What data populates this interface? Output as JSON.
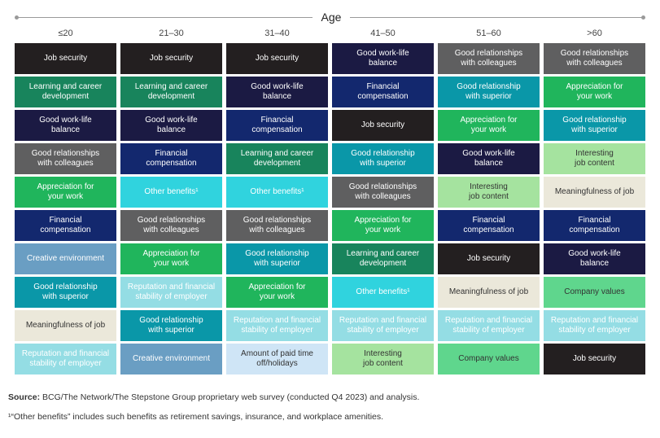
{
  "colors": {
    "Job security": {
      "bg": "#231f20",
      "fg": "#ffffff"
    },
    "Good work-life balance": {
      "bg": "#1b1a43",
      "fg": "#ffffff"
    },
    "Learning and career development": {
      "bg": "#18845c",
      "fg": "#ffffff"
    },
    "Good relationships with colleagues": {
      "bg": "#5f5f60",
      "fg": "#ffffff"
    },
    "Appreciation for your work": {
      "bg": "#20b55c",
      "fg": "#ffffff"
    },
    "Financial compensation": {
      "bg": "#13286e",
      "fg": "#ffffff"
    },
    "Creative environment": {
      "bg": "#6a9ec3",
      "fg": "#ffffff"
    },
    "Good relationship with superior": {
      "bg": "#0a97a8",
      "fg": "#ffffff"
    },
    "Meaningfulness of job": {
      "bg": "#ebe8da",
      "fg": "#333333"
    },
    "Reputation and financial stability of employer": {
      "bg": "#94dde4",
      "fg": "#ffffff"
    },
    "Other benefits": {
      "bg": "#30d3de",
      "fg": "#ffffff"
    },
    "Amount of paid time off/holidays": {
      "bg": "#cfe5f6",
      "fg": "#333333"
    },
    "Interesting job content": {
      "bg": "#a5e39f",
      "fg": "#333333"
    },
    "Company values": {
      "bg": "#5fd68d",
      "fg": "#333333"
    }
  },
  "chart_data": {
    "type": "table",
    "title": "Age",
    "columns": [
      "≤20",
      "21–30",
      "31–40",
      "41–50",
      "51–60",
      ">60"
    ],
    "rows": [
      [
        {
          "key": "Job security",
          "label": "Job security"
        },
        {
          "key": "Learning and career development",
          "label": "Learning and career\ndevelopment"
        },
        {
          "key": "Good work-life balance",
          "label": "Good work-life\nbalance"
        },
        {
          "key": "Good relationships with colleagues",
          "label": "Good relationships\nwith colleagues"
        },
        {
          "key": "Appreciation for your work",
          "label": "Appreciation for\nyour work"
        },
        {
          "key": "Financial compensation",
          "label": "Financial\ncompensation"
        },
        {
          "key": "Creative environment",
          "label": "Creative environment"
        },
        {
          "key": "Good relationship with superior",
          "label": "Good relationship\nwith superior"
        },
        {
          "key": "Meaningfulness of job",
          "label": "Meaningfulness of job"
        },
        {
          "key": "Reputation and financial stability of employer",
          "label": "Reputation and financial\nstability of employer"
        }
      ],
      [
        {
          "key": "Job security",
          "label": "Job security"
        },
        {
          "key": "Learning and career development",
          "label": "Learning and career\ndevelopment"
        },
        {
          "key": "Good work-life balance",
          "label": "Good work-life\nbalance"
        },
        {
          "key": "Financial compensation",
          "label": "Financial\ncompensation"
        },
        {
          "key": "Other benefits",
          "label": "Other benefits¹"
        },
        {
          "key": "Good relationships with colleagues",
          "label": "Good relationships\nwith colleagues"
        },
        {
          "key": "Appreciation for your work",
          "label": "Appreciation for\nyour work"
        },
        {
          "key": "Reputation and financial stability of employer",
          "label": "Reputation and financial\nstability of employer"
        },
        {
          "key": "Good relationship with superior",
          "label": "Good relationship\nwith superior"
        },
        {
          "key": "Creative environment",
          "label": "Creative environment"
        }
      ],
      [
        {
          "key": "Job security",
          "label": "Job security"
        },
        {
          "key": "Good work-life balance",
          "label": "Good work-life\nbalance"
        },
        {
          "key": "Financial compensation",
          "label": "Financial\ncompensation"
        },
        {
          "key": "Learning and career development",
          "label": "Learning and career\ndevelopment"
        },
        {
          "key": "Other benefits",
          "label": "Other benefits¹"
        },
        {
          "key": "Good relationships with colleagues",
          "label": "Good relationships\nwith colleagues"
        },
        {
          "key": "Good relationship with superior",
          "label": "Good relationship\nwith superior"
        },
        {
          "key": "Appreciation for your work",
          "label": "Appreciation for\nyour work"
        },
        {
          "key": "Reputation and financial stability of employer",
          "label": "Reputation and financial\nstability of employer"
        },
        {
          "key": "Amount of paid time off/holidays",
          "label": "Amount of paid time\noff/holidays"
        }
      ],
      [
        {
          "key": "Good work-life balance",
          "label": "Good work-life\nbalance"
        },
        {
          "key": "Financial compensation",
          "label": "Financial\ncompensation"
        },
        {
          "key": "Job security",
          "label": "Job security"
        },
        {
          "key": "Good relationship with superior",
          "label": "Good relationship\nwith superior"
        },
        {
          "key": "Good relationships with colleagues",
          "label": "Good relationships\nwith colleagues"
        },
        {
          "key": "Appreciation for your work",
          "label": "Appreciation for\nyour work"
        },
        {
          "key": "Learning and career development",
          "label": "Learning and career\ndevelopment"
        },
        {
          "key": "Other benefits",
          "label": "Other benefits¹"
        },
        {
          "key": "Reputation and financial stability of employer",
          "label": "Reputation and financial\nstability of employer"
        },
        {
          "key": "Interesting job content",
          "label": "Interesting\njob content"
        }
      ],
      [
        {
          "key": "Good relationships with colleagues",
          "label": "Good relationships\nwith colleagues"
        },
        {
          "key": "Good relationship with superior",
          "label": "Good relationship\nwith superior"
        },
        {
          "key": "Appreciation for your work",
          "label": "Appreciation for\nyour work"
        },
        {
          "key": "Good work-life balance",
          "label": "Good work-life\nbalance"
        },
        {
          "key": "Interesting job content",
          "label": "Interesting\njob content"
        },
        {
          "key": "Financial compensation",
          "label": "Financial\ncompensation"
        },
        {
          "key": "Job security",
          "label": "Job security"
        },
        {
          "key": "Meaningfulness of job",
          "label": "Meaningfulness of job"
        },
        {
          "key": "Reputation and financial stability of employer",
          "label": "Reputation and financial\nstability of employer"
        },
        {
          "key": "Company values",
          "label": "Company values"
        }
      ],
      [
        {
          "key": "Good relationships with colleagues",
          "label": "Good relationships\nwith colleagues"
        },
        {
          "key": "Appreciation for your work",
          "label": "Appreciation for\nyour work"
        },
        {
          "key": "Good relationship with superior",
          "label": "Good relationship\nwith superior"
        },
        {
          "key": "Interesting job content",
          "label": "Interesting\njob content"
        },
        {
          "key": "Meaningfulness of job",
          "label": "Meaningfulness of job"
        },
        {
          "key": "Financial compensation",
          "label": "Financial\ncompensation"
        },
        {
          "key": "Good work-life balance",
          "label": "Good work-life\nbalance"
        },
        {
          "key": "Company values",
          "label": "Company values"
        },
        {
          "key": "Reputation and financial stability of employer",
          "label": "Reputation and financial\nstability of employer"
        },
        {
          "key": "Job security",
          "label": "Job security"
        }
      ]
    ]
  },
  "footer": {
    "source_label": "Source:",
    "source_text": " BCG/The Network/The Stepstone Group proprietary web survey (conducted Q4 2023) and analysis.",
    "note": "¹“Other benefits” includes such benefits as retirement savings, insurance, and workplace amenities."
  }
}
